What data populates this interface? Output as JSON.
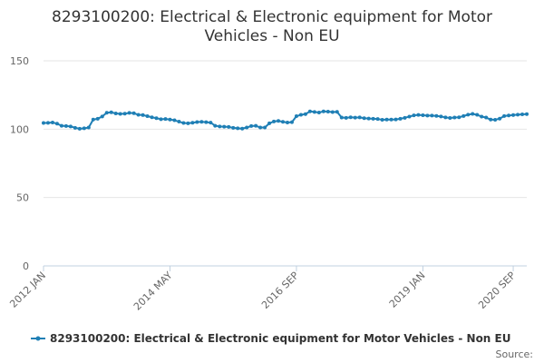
{
  "chart_data": {
    "type": "line",
    "title_lines": [
      "8293100200: Electrical & Electronic equipment for Motor",
      "Vehicles - Non EU"
    ],
    "xlabel": "",
    "ylabel": "",
    "ylim": [
      0,
      150
    ],
    "y_ticks": [
      0,
      50,
      100,
      150
    ],
    "x_tick_labels": [
      {
        "index": 0,
        "label": "2012 JAN"
      },
      {
        "index": 28,
        "label": "2014 MAY"
      },
      {
        "index": 56,
        "label": "2016 SEP"
      },
      {
        "index": 84,
        "label": "2019 JAN"
      },
      {
        "index": 104,
        "label": "2020 SEP"
      }
    ],
    "grid": true,
    "legend_position": "bottom",
    "credits": "Source:",
    "series": [
      {
        "name": "8293100200: Electrical & Electronic equipment for Motor Vehicles - Non EU",
        "color": "#1f7fb5",
        "values": [
          104.5,
          104.6,
          104.9,
          104.0,
          102.5,
          102.3,
          102.0,
          101.0,
          100.3,
          100.6,
          101.2,
          107.0,
          107.6,
          109.3,
          112.0,
          112.3,
          111.5,
          111.2,
          111.3,
          111.9,
          111.7,
          110.5,
          110.3,
          109.5,
          108.7,
          108.0,
          107.3,
          107.4,
          107.0,
          106.5,
          105.5,
          104.5,
          104.3,
          104.7,
          105.2,
          105.4,
          105.1,
          104.8,
          102.5,
          102.0,
          101.8,
          101.6,
          101.0,
          100.6,
          100.4,
          101.2,
          102.3,
          102.5,
          101.2,
          101.2,
          104.3,
          105.6,
          106.0,
          105.4,
          104.9,
          105.1,
          109.5,
          110.5,
          111.0,
          113.0,
          112.6,
          112.2,
          113.0,
          112.8,
          112.5,
          112.7,
          108.5,
          108.3,
          108.7,
          108.4,
          108.6,
          108.0,
          107.8,
          107.6,
          107.4,
          106.9,
          107.0,
          107.0,
          107.1,
          107.6,
          108.3,
          109.2,
          110.1,
          110.4,
          110.2,
          109.9,
          109.9,
          109.7,
          109.3,
          108.6,
          108.2,
          108.5,
          108.7,
          109.6,
          110.6,
          111.2,
          110.5,
          109.2,
          108.5,
          107.0,
          106.9,
          107.7,
          109.6,
          110.0,
          110.3,
          110.6,
          110.8,
          111.0
        ]
      }
    ]
  }
}
